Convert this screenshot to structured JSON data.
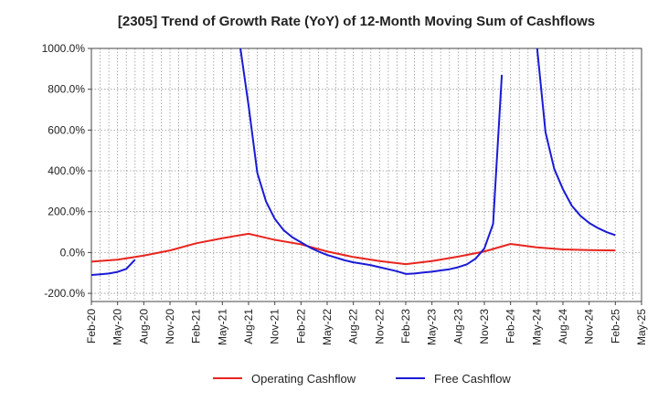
{
  "chart_data": {
    "type": "line",
    "title": "[2305]  Trend of Growth Rate (YoY) of 12-Month Moving Sum of Cashflows",
    "xlabel": "",
    "ylabel": "",
    "ylim": [
      -240,
      1000
    ],
    "yticks": [
      -200,
      0,
      200,
      400,
      600,
      800,
      1000
    ],
    "ytick_labels": [
      "-200.0%",
      "0.0%",
      "200.0%",
      "400.0%",
      "600.0%",
      "800.0%",
      "1000.0%"
    ],
    "xlim": [
      "Feb-20",
      "May-25"
    ],
    "xtick_labels": [
      "Feb-20",
      "May-20",
      "Aug-20",
      "Nov-20",
      "Feb-21",
      "May-21",
      "Aug-21",
      "Nov-21",
      "Feb-22",
      "May-22",
      "Aug-22",
      "Nov-22",
      "Feb-23",
      "May-23",
      "Aug-23",
      "Nov-23",
      "Feb-24",
      "May-24",
      "Aug-24",
      "Nov-24",
      "Feb-25",
      "May-25"
    ],
    "grid": true,
    "legend_position": "bottom",
    "series": [
      {
        "name": "Operating Cashflow",
        "color": "#e8251e",
        "points": [
          [
            "Feb-20",
            -45
          ],
          [
            "May-20",
            -35
          ],
          [
            "Aug-20",
            -15
          ],
          [
            "Nov-20",
            10
          ],
          [
            "Feb-21",
            45
          ],
          [
            "May-21",
            70
          ],
          [
            "Aug-21",
            92
          ],
          [
            "Sep-21",
            82
          ],
          [
            "Nov-21",
            62
          ],
          [
            "Feb-22",
            40
          ],
          [
            "May-22",
            5
          ],
          [
            "Aug-22",
            -22
          ],
          [
            "Nov-22",
            -42
          ],
          [
            "Feb-23",
            -57
          ],
          [
            "May-23",
            -42
          ],
          [
            "Aug-23",
            -20
          ],
          [
            "Nov-23",
            5
          ],
          [
            "Feb-24",
            42
          ],
          [
            "May-24",
            25
          ],
          [
            "Aug-24",
            15
          ],
          [
            "Nov-24",
            12
          ],
          [
            "Feb-25",
            10
          ]
        ]
      },
      {
        "name": "Free Cashflow",
        "color": "#1a1ad6",
        "segments": [
          [
            [
              "Feb-20",
              -110
            ],
            [
              "Mar-20",
              -107
            ],
            [
              "Apr-20",
              -103
            ],
            [
              "May-20",
              -95
            ],
            [
              "Jun-20",
              -80
            ],
            [
              "Jul-20",
              -35
            ]
          ],
          [
            [
              "Jul-21",
              1020
            ],
            [
              "Aug-21",
              720
            ],
            [
              "Sep-21",
              390
            ],
            [
              "Oct-21",
              250
            ],
            [
              "Nov-21",
              165
            ],
            [
              "Dec-21",
              110
            ],
            [
              "Jan-22",
              75
            ],
            [
              "Feb-22",
              50
            ],
            [
              "Mar-22",
              25
            ],
            [
              "Apr-22",
              5
            ],
            [
              "May-22",
              -12
            ],
            [
              "Jun-22",
              -25
            ],
            [
              "Jul-22",
              -38
            ],
            [
              "Aug-22",
              -48
            ],
            [
              "Sep-22",
              -55
            ],
            [
              "Oct-22",
              -62
            ],
            [
              "Nov-22",
              -72
            ],
            [
              "Dec-22",
              -82
            ],
            [
              "Jan-23",
              -92
            ],
            [
              "Feb-23",
              -105
            ],
            [
              "Mar-23",
              -103
            ],
            [
              "Apr-23",
              -98
            ],
            [
              "May-23",
              -94
            ],
            [
              "Jun-23",
              -88
            ],
            [
              "Jul-23",
              -82
            ],
            [
              "Aug-23",
              -72
            ],
            [
              "Sep-23",
              -58
            ],
            [
              "Oct-23",
              -30
            ],
            [
              "Nov-23",
              20
            ],
            [
              "Dec-23",
              140
            ],
            [
              "Jan-24",
              870
            ]
          ],
          [
            [
              "May-24",
              1020
            ],
            [
              "Jun-24",
              590
            ],
            [
              "Jul-24",
              410
            ],
            [
              "Aug-24",
              310
            ],
            [
              "Sep-24",
              230
            ],
            [
              "Oct-24",
              180
            ],
            [
              "Nov-24",
              145
            ],
            [
              "Dec-24",
              120
            ],
            [
              "Jan-25",
              100
            ],
            [
              "Feb-25",
              85
            ]
          ]
        ]
      }
    ]
  }
}
